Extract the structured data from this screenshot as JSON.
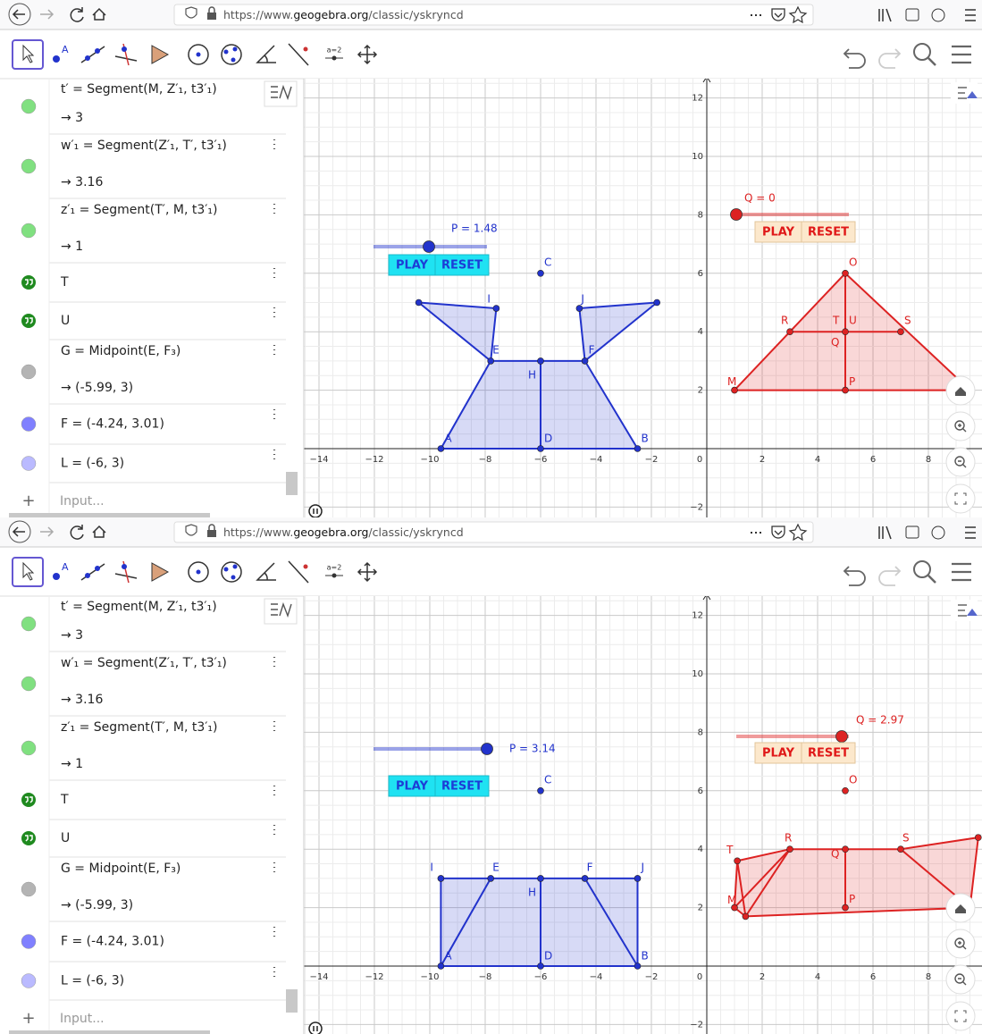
{
  "panels": [
    {
      "browser": {
        "url_scheme": "https://www.",
        "url_domain": "geogebra.org",
        "url_path": "/classic/yskryncd"
      },
      "toolbar": {
        "point_tool_label": "A",
        "slider_tool_label": "a=2"
      },
      "algebra": {
        "rows": [
          {
            "definition": "t′ = Segment(M, Z′₁, t3′₁)",
            "value": "→ 3"
          },
          {
            "definition": "w′₁ = Segment(Z′₁, T′, t3′₁)",
            "value": "→ 3.16"
          },
          {
            "definition": "z′₁ = Segment(T′, M, t3′₁)",
            "value": "→ 1"
          },
          {
            "definition": "T"
          },
          {
            "definition": "U"
          },
          {
            "definition": "G = Midpoint(E, F₃)",
            "value": "→ (-5.99, 3)"
          },
          {
            "definition": "F = (-4.24, 3.01)"
          },
          {
            "definition": "L = (-6, 3)"
          }
        ],
        "input_placeholder": "Input..."
      },
      "graphics": {
        "x_axis_labels": [
          "−14",
          "−12",
          "−10",
          "−8",
          "−6",
          "−4",
          "−2",
          "0",
          "2",
          "4",
          "6",
          "8"
        ],
        "y_axis_labels": [
          "−2",
          "2",
          "4",
          "6",
          "8",
          "10",
          "12"
        ],
        "sliders": [
          {
            "label": "P = 1.48",
            "play": "PLAY",
            "reset": "RESET"
          },
          {
            "label": "Q = 0",
            "play": "PLAY",
            "reset": "RESET"
          }
        ],
        "point_labels": [
          "C",
          "I",
          "J",
          "E",
          "F",
          "H",
          "A",
          "D",
          "B",
          "O",
          "R",
          "T",
          "U",
          "Q",
          "S",
          "M",
          "P"
        ]
      }
    },
    {
      "browser": {
        "url_scheme": "https://www.",
        "url_domain": "geogebra.org",
        "url_path": "/classic/yskryncd"
      },
      "toolbar": {
        "point_tool_label": "A",
        "slider_tool_label": "a=2"
      },
      "algebra": {
        "rows": [
          {
            "definition": "t′ = Segment(M, Z′₁, t3′₁)",
            "value": "→ 3"
          },
          {
            "definition": "w′₁ = Segment(Z′₁, T′, t3′₁)",
            "value": "→ 3.16"
          },
          {
            "definition": "z′₁ = Segment(T′, M, t3′₁)",
            "value": "→ 1"
          },
          {
            "definition": "T"
          },
          {
            "definition": "U"
          },
          {
            "definition": "G = Midpoint(E, F₃)",
            "value": "→ (-5.99, 3)"
          },
          {
            "definition": "F = (-4.24, 3.01)"
          },
          {
            "definition": "L = (-6, 3)"
          }
        ],
        "input_placeholder": "Input..."
      },
      "graphics": {
        "x_axis_labels": [
          "−14",
          "−12",
          "−10",
          "−8",
          "−6",
          "−4",
          "−2",
          "0",
          "2",
          "4",
          "6",
          "8"
        ],
        "y_axis_labels": [
          "−2",
          "2",
          "4",
          "6",
          "8",
          "10",
          "12"
        ],
        "sliders": [
          {
            "label": "P = 3.14",
            "play": "PLAY",
            "reset": "RESET"
          },
          {
            "label": "Q = 2.97",
            "play": "PLAY",
            "reset": "RESET"
          }
        ],
        "point_labels": [
          "C",
          "I",
          "E",
          "F",
          "J",
          "H",
          "A",
          "D",
          "B",
          "O",
          "T",
          "R",
          "Q",
          "S",
          "U",
          "M",
          "P"
        ]
      }
    }
  ]
}
